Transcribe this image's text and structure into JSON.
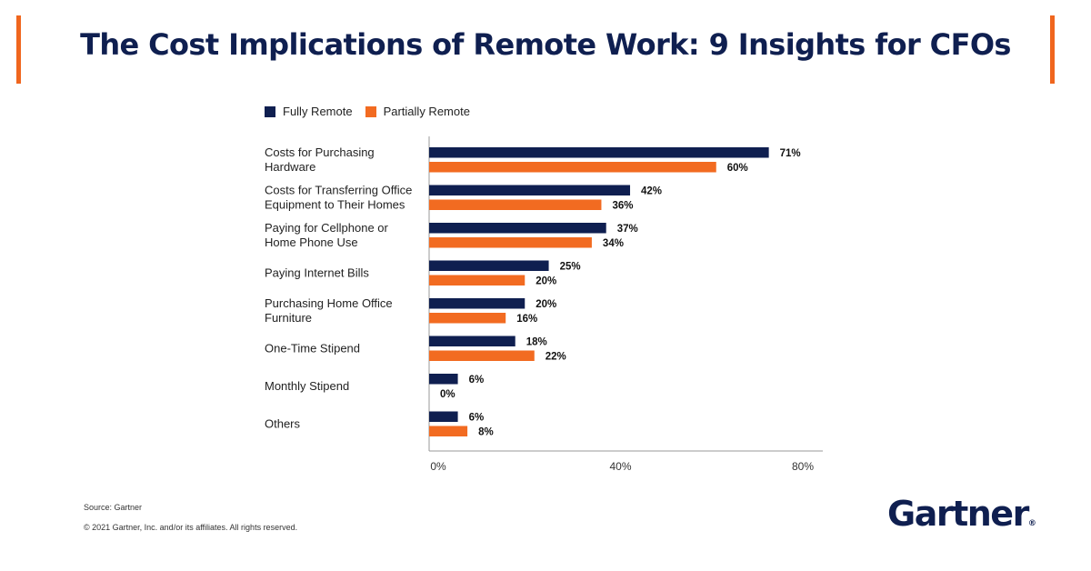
{
  "header": {
    "title": "The Cost Implications of Remote Work: 9 Insights for CFOs"
  },
  "colors": {
    "accent": "#f0661e",
    "navy": "#0f1f50",
    "orange": "#f26b21"
  },
  "chart_data": {
    "type": "bar",
    "orientation": "horizontal",
    "categories": [
      [
        "Costs for Purchasing",
        "Hardware"
      ],
      [
        "Costs for Transferring Office",
        "Equipment to Their Homes"
      ],
      [
        "Paying for Cellphone or",
        "Home Phone Use"
      ],
      [
        "Paying Internet Bills"
      ],
      [
        "Purchasing Home Office",
        "Furniture"
      ],
      [
        "One-Time Stipend"
      ],
      [
        "Monthly Stipend"
      ],
      [
        "Others"
      ]
    ],
    "series": [
      {
        "name": "Fully Remote",
        "color": "#0f1f50",
        "values": [
          71,
          42,
          37,
          25,
          20,
          18,
          6,
          6
        ]
      },
      {
        "name": "Partially Remote",
        "color": "#f26b21",
        "values": [
          60,
          36,
          34,
          20,
          16,
          22,
          0,
          8
        ]
      }
    ],
    "xlim": [
      0,
      80
    ],
    "xticks": [
      "0%",
      "40%",
      "80%"
    ],
    "legend_position": "top-left",
    "grid": false
  },
  "footer": {
    "source": "Source: Gartner",
    "copyright": "© 2021 Gartner, Inc. and/or its affiliates. All rights reserved.",
    "logo": "Gartner",
    "logo_mark": "®"
  }
}
